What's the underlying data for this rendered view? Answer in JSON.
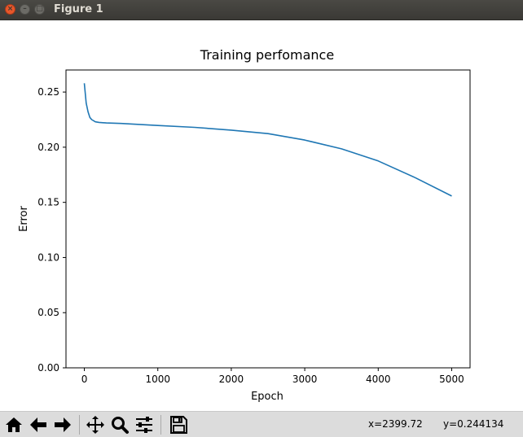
{
  "window": {
    "title": "Figure 1"
  },
  "toolbar": {
    "buttons": [
      {
        "name": "home-icon"
      },
      {
        "name": "back-arrow-icon"
      },
      {
        "name": "forward-arrow-icon"
      },
      {
        "name": "pan-icon"
      },
      {
        "name": "zoom-icon"
      },
      {
        "name": "configure-subplots-icon"
      },
      {
        "name": "save-icon"
      }
    ],
    "x_readout": "x=2399.72",
    "y_readout": "y=0.244134"
  },
  "chart_data": {
    "type": "line",
    "title": "Training perfomance",
    "xlabel": "Epoch",
    "ylabel": "Error",
    "xlim": [
      -250,
      5250
    ],
    "ylim": [
      0.0,
      0.27
    ],
    "xticks": [
      0,
      1000,
      2000,
      3000,
      4000,
      5000
    ],
    "xtick_labels": [
      "0",
      "1000",
      "2000",
      "3000",
      "4000",
      "5000"
    ],
    "yticks": [
      0.0,
      0.05,
      0.1,
      0.15,
      0.2,
      0.25
    ],
    "ytick_labels": [
      "0.00",
      "0.05",
      "0.10",
      "0.15",
      "0.20",
      "0.25"
    ],
    "grid": false,
    "series": [
      {
        "color": "#1f77b4",
        "x": [
          0,
          25,
          50,
          75,
          100,
          150,
          200,
          300,
          500,
          1000,
          1500,
          2000,
          2500,
          3000,
          3500,
          4000,
          4500,
          5000
        ],
        "y": [
          0.258,
          0.24,
          0.232,
          0.227,
          0.225,
          0.223,
          0.2225,
          0.222,
          0.2215,
          0.2197,
          0.218,
          0.2155,
          0.2123,
          0.2065,
          0.1985,
          0.1875,
          0.1725,
          0.1557
        ]
      }
    ]
  }
}
